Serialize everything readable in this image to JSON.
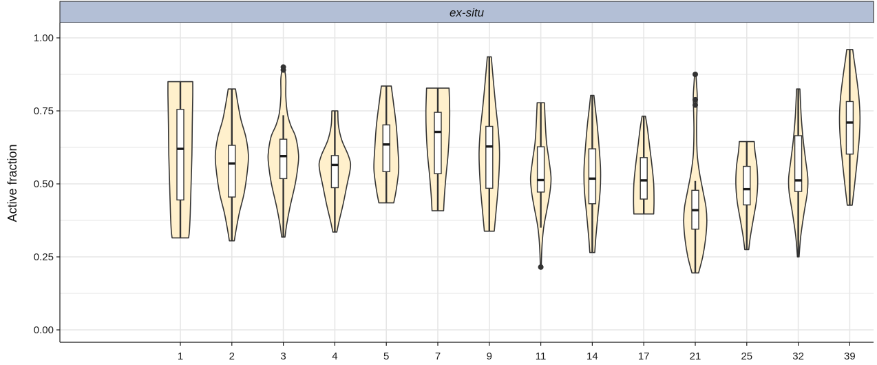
{
  "chart_data": {
    "type": "violin",
    "facet_label": "ex-situ",
    "xlabel": "",
    "ylabel": "Active fraction",
    "ylim": [
      0,
      1.05
    ],
    "y_ticks": [
      "0.00",
      "0.25",
      "0.50",
      "0.75",
      "1.00"
    ],
    "y_tick_values": [
      0,
      0.25,
      0.5,
      0.75,
      1.0
    ],
    "grid": true,
    "legend": "none",
    "colors": {
      "violin_fill": "#fff0cc",
      "outline": "#333333",
      "strip_fill": "#b3bfd6",
      "grid": "#e6e6e6",
      "box_fill": "#ffffff"
    },
    "categories": [
      "1",
      "2",
      "3",
      "4",
      "5",
      "7",
      "9",
      "11",
      "14",
      "17",
      "21",
      "25",
      "32",
      "39"
    ],
    "groups": [
      {
        "category": "1",
        "min": 0.315,
        "max": 0.85,
        "q1": 0.445,
        "median": 0.62,
        "q3": 0.755,
        "whisker_low": 0.315,
        "whisker_high": 0.85,
        "outliers": [],
        "shape": [
          [
            0.315,
            0.5
          ],
          [
            0.34,
            0.55
          ],
          [
            0.4,
            0.6
          ],
          [
            0.5,
            0.65
          ],
          [
            0.6,
            0.7
          ],
          [
            0.7,
            0.72
          ],
          [
            0.8,
            0.75
          ],
          [
            0.85,
            0.75
          ]
        ]
      },
      {
        "category": "2",
        "min": 0.305,
        "max": 0.825,
        "q1": 0.455,
        "median": 0.57,
        "q3": 0.632,
        "whisker_low": 0.305,
        "whisker_high": 0.825,
        "outliers": [],
        "shape": [
          [
            0.305,
            0.15
          ],
          [
            0.34,
            0.25
          ],
          [
            0.4,
            0.45
          ],
          [
            0.47,
            0.75
          ],
          [
            0.55,
            0.95
          ],
          [
            0.6,
            1.0
          ],
          [
            0.66,
            0.85
          ],
          [
            0.72,
            0.55
          ],
          [
            0.78,
            0.35
          ],
          [
            0.825,
            0.22
          ]
        ]
      },
      {
        "category": "3",
        "min": 0.318,
        "max": 0.9,
        "q1": 0.518,
        "median": 0.595,
        "q3": 0.653,
        "whisker_low": 0.318,
        "whisker_high": 0.735,
        "outliers": [
          0.89,
          0.9
        ],
        "shape": [
          [
            0.318,
            0.1
          ],
          [
            0.36,
            0.2
          ],
          [
            0.42,
            0.4
          ],
          [
            0.5,
            0.72
          ],
          [
            0.56,
            0.88
          ],
          [
            0.6,
            0.92
          ],
          [
            0.66,
            0.75
          ],
          [
            0.7,
            0.45
          ],
          [
            0.74,
            0.25
          ],
          [
            0.8,
            0.15
          ],
          [
            0.86,
            0.15
          ],
          [
            0.9,
            0.05
          ]
        ]
      },
      {
        "category": "4",
        "min": 0.335,
        "max": 0.75,
        "q1": 0.487,
        "median": 0.565,
        "q3": 0.597,
        "whisker_low": 0.335,
        "whisker_high": 0.75,
        "outliers": [],
        "shape": [
          [
            0.335,
            0.12
          ],
          [
            0.37,
            0.25
          ],
          [
            0.43,
            0.5
          ],
          [
            0.5,
            0.75
          ],
          [
            0.54,
            0.9
          ],
          [
            0.57,
            0.95
          ],
          [
            0.6,
            0.8
          ],
          [
            0.65,
            0.42
          ],
          [
            0.7,
            0.22
          ],
          [
            0.75,
            0.18
          ]
        ]
      },
      {
        "category": "5",
        "min": 0.435,
        "max": 0.835,
        "q1": 0.542,
        "median": 0.635,
        "q3": 0.702,
        "whisker_low": 0.435,
        "whisker_high": 0.835,
        "outliers": [],
        "shape": [
          [
            0.435,
            0.45
          ],
          [
            0.48,
            0.6
          ],
          [
            0.55,
            0.75
          ],
          [
            0.62,
            0.7
          ],
          [
            0.7,
            0.6
          ],
          [
            0.77,
            0.45
          ],
          [
            0.835,
            0.3
          ]
        ]
      },
      {
        "category": "7",
        "min": 0.408,
        "max": 0.828,
        "q1": 0.535,
        "median": 0.678,
        "q3": 0.745,
        "whisker_low": 0.408,
        "whisker_high": 0.828,
        "outliers": [],
        "shape": [
          [
            0.408,
            0.35
          ],
          [
            0.46,
            0.4
          ],
          [
            0.53,
            0.5
          ],
          [
            0.6,
            0.62
          ],
          [
            0.68,
            0.7
          ],
          [
            0.75,
            0.72
          ],
          [
            0.828,
            0.68
          ]
        ]
      },
      {
        "category": "9",
        "min": 0.338,
        "max": 0.935,
        "q1": 0.485,
        "median": 0.628,
        "q3": 0.697,
        "whisker_low": 0.338,
        "whisker_high": 0.935,
        "outliers": [],
        "shape": [
          [
            0.338,
            0.3
          ],
          [
            0.4,
            0.4
          ],
          [
            0.5,
            0.55
          ],
          [
            0.6,
            0.62
          ],
          [
            0.68,
            0.55
          ],
          [
            0.76,
            0.4
          ],
          [
            0.85,
            0.25
          ],
          [
            0.935,
            0.12
          ]
        ]
      },
      {
        "category": "11",
        "min": 0.215,
        "max": 0.778,
        "q1": 0.472,
        "median": 0.513,
        "q3": 0.627,
        "whisker_low": 0.35,
        "whisker_high": 0.778,
        "outliers": [
          0.215
        ],
        "shape": [
          [
            0.215,
            0.03
          ],
          [
            0.26,
            0.05
          ],
          [
            0.31,
            0.1
          ],
          [
            0.36,
            0.2
          ],
          [
            0.42,
            0.4
          ],
          [
            0.47,
            0.55
          ],
          [
            0.52,
            0.62
          ],
          [
            0.58,
            0.5
          ],
          [
            0.64,
            0.35
          ],
          [
            0.7,
            0.28
          ],
          [
            0.778,
            0.22
          ]
        ]
      },
      {
        "category": "14",
        "min": 0.265,
        "max": 0.803,
        "q1": 0.432,
        "median": 0.518,
        "q3": 0.62,
        "whisker_low": 0.265,
        "whisker_high": 0.803,
        "outliers": [],
        "shape": [
          [
            0.265,
            0.15
          ],
          [
            0.32,
            0.22
          ],
          [
            0.4,
            0.35
          ],
          [
            0.48,
            0.48
          ],
          [
            0.55,
            0.5
          ],
          [
            0.62,
            0.42
          ],
          [
            0.7,
            0.3
          ],
          [
            0.76,
            0.18
          ],
          [
            0.803,
            0.1
          ]
        ]
      },
      {
        "category": "17",
        "min": 0.397,
        "max": 0.732,
        "q1": 0.448,
        "median": 0.512,
        "q3": 0.59,
        "whisker_low": 0.397,
        "whisker_high": 0.732,
        "outliers": [],
        "shape": [
          [
            0.397,
            0.6
          ],
          [
            0.44,
            0.62
          ],
          [
            0.5,
            0.6
          ],
          [
            0.56,
            0.5
          ],
          [
            0.63,
            0.35
          ],
          [
            0.69,
            0.22
          ],
          [
            0.732,
            0.1
          ]
        ]
      },
      {
        "category": "21",
        "min": 0.195,
        "max": 0.875,
        "q1": 0.345,
        "median": 0.41,
        "q3": 0.478,
        "whisker_low": 0.195,
        "whisker_high": 0.51,
        "outliers": [
          0.77,
          0.788,
          0.875
        ],
        "shape": [
          [
            0.195,
            0.2
          ],
          [
            0.25,
            0.45
          ],
          [
            0.31,
            0.62
          ],
          [
            0.37,
            0.7
          ],
          [
            0.42,
            0.65
          ],
          [
            0.48,
            0.45
          ],
          [
            0.54,
            0.25
          ],
          [
            0.6,
            0.12
          ],
          [
            0.68,
            0.08
          ],
          [
            0.75,
            0.1
          ],
          [
            0.8,
            0.12
          ],
          [
            0.84,
            0.08
          ],
          [
            0.875,
            0.04
          ]
        ]
      },
      {
        "category": "25",
        "min": 0.275,
        "max": 0.645,
        "q1": 0.428,
        "median": 0.482,
        "q3": 0.56,
        "whisker_low": 0.275,
        "whisker_high": 0.645,
        "outliers": [],
        "shape": [
          [
            0.275,
            0.12
          ],
          [
            0.32,
            0.22
          ],
          [
            0.38,
            0.4
          ],
          [
            0.44,
            0.58
          ],
          [
            0.5,
            0.66
          ],
          [
            0.56,
            0.62
          ],
          [
            0.61,
            0.5
          ],
          [
            0.645,
            0.45
          ]
        ]
      },
      {
        "category": "32",
        "min": 0.25,
        "max": 0.825,
        "q1": 0.474,
        "median": 0.512,
        "q3": 0.665,
        "whisker_low": 0.25,
        "whisker_high": 0.825,
        "outliers": [],
        "shape": [
          [
            0.25,
            0.05
          ],
          [
            0.32,
            0.15
          ],
          [
            0.4,
            0.35
          ],
          [
            0.47,
            0.55
          ],
          [
            0.52,
            0.58
          ],
          [
            0.58,
            0.45
          ],
          [
            0.65,
            0.3
          ],
          [
            0.73,
            0.18
          ],
          [
            0.825,
            0.1
          ]
        ]
      },
      {
        "category": "39",
        "min": 0.427,
        "max": 0.96,
        "q1": 0.602,
        "median": 0.71,
        "q3": 0.782,
        "whisker_low": 0.427,
        "whisker_high": 0.96,
        "outliers": [],
        "shape": [
          [
            0.427,
            0.15
          ],
          [
            0.5,
            0.3
          ],
          [
            0.58,
            0.45
          ],
          [
            0.66,
            0.58
          ],
          [
            0.73,
            0.62
          ],
          [
            0.8,
            0.55
          ],
          [
            0.87,
            0.4
          ],
          [
            0.93,
            0.25
          ],
          [
            0.96,
            0.18
          ]
        ]
      }
    ]
  }
}
